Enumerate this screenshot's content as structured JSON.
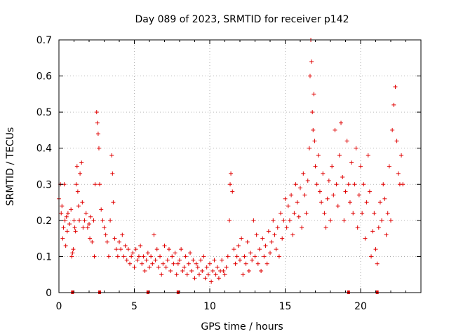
{
  "chart_data": {
    "type": "scatter",
    "title": "Day 089 of 2023, SRMTID for receiver p142",
    "xlabel": "GPS time / hours",
    "ylabel": "SRMTID / TECUs",
    "xlim": [
      0,
      24
    ],
    "ylim": [
      0,
      0.7
    ],
    "x_ticks": [
      0,
      5,
      10,
      15,
      20
    ],
    "x_tick_labels": [
      "0",
      "5",
      "10",
      "15",
      "20"
    ],
    "y_ticks": [
      0,
      0.1,
      0.2,
      0.3,
      0.4,
      0.5,
      0.6,
      0.7
    ],
    "y_tick_labels": [
      "0",
      "0.1",
      "0.2",
      "0.3",
      "0.4",
      "0.5",
      "0.6",
      "0.7"
    ],
    "grid": true,
    "marker": "plus",
    "color": "#e00000",
    "series": [
      {
        "name": "SRMTID",
        "points": [
          [
            0.0,
            0.26
          ],
          [
            0.1,
            0.3
          ],
          [
            0.15,
            0.22
          ],
          [
            0.2,
            0.24
          ],
          [
            0.25,
            0.15
          ],
          [
            0.3,
            0.18
          ],
          [
            0.35,
            0.3
          ],
          [
            0.4,
            0.2
          ],
          [
            0.45,
            0.13
          ],
          [
            0.5,
            0.21
          ],
          [
            0.55,
            0.17
          ],
          [
            0.6,
            0.22
          ],
          [
            0.7,
            0.19
          ],
          [
            0.8,
            0.23
          ],
          [
            0.85,
            0.1
          ],
          [
            0.9,
            0.11
          ],
          [
            0.95,
            0.12
          ],
          [
            1.0,
            0.2
          ],
          [
            1.05,
            0.18
          ],
          [
            1.1,
            0.17
          ],
          [
            1.15,
            0.3
          ],
          [
            1.2,
            0.35
          ],
          [
            1.25,
            0.28
          ],
          [
            1.3,
            0.24
          ],
          [
            1.35,
            0.2
          ],
          [
            1.4,
            0.33
          ],
          [
            1.5,
            0.36
          ],
          [
            1.55,
            0.25
          ],
          [
            1.6,
            0.18
          ],
          [
            1.7,
            0.2
          ],
          [
            1.8,
            0.22
          ],
          [
            1.9,
            0.18
          ],
          [
            2.0,
            0.19
          ],
          [
            2.05,
            0.15
          ],
          [
            2.1,
            0.21
          ],
          [
            2.2,
            0.14
          ],
          [
            2.3,
            0.2
          ],
          [
            2.35,
            0.1
          ],
          [
            2.4,
            0.3
          ],
          [
            2.5,
            0.5
          ],
          [
            2.55,
            0.47
          ],
          [
            2.6,
            0.44
          ],
          [
            2.65,
            0.4
          ],
          [
            2.7,
            0.3
          ],
          [
            2.8,
            0.23
          ],
          [
            2.9,
            0.2
          ],
          [
            3.0,
            0.18
          ],
          [
            3.1,
            0.16
          ],
          [
            3.2,
            0.14
          ],
          [
            3.3,
            0.1
          ],
          [
            3.4,
            0.2
          ],
          [
            3.5,
            0.38
          ],
          [
            3.55,
            0.33
          ],
          [
            3.6,
            0.25
          ],
          [
            3.7,
            0.15
          ],
          [
            3.8,
            0.12
          ],
          [
            3.9,
            0.1
          ],
          [
            4.0,
            0.14
          ],
          [
            4.1,
            0.12
          ],
          [
            4.2,
            0.16
          ],
          [
            4.3,
            0.1
          ],
          [
            4.4,
            0.13
          ],
          [
            4.5,
            0.09
          ],
          [
            4.6,
            0.12
          ],
          [
            4.7,
            0.08
          ],
          [
            4.8,
            0.1
          ],
          [
            4.9,
            0.11
          ],
          [
            5.0,
            0.07
          ],
          [
            5.1,
            0.12
          ],
          [
            5.2,
            0.09
          ],
          [
            5.3,
            0.1
          ],
          [
            5.4,
            0.13
          ],
          [
            5.5,
            0.08
          ],
          [
            5.6,
            0.1
          ],
          [
            5.7,
            0.06
          ],
          [
            5.8,
            0.09
          ],
          [
            5.9,
            0.11
          ],
          [
            6.0,
            0.07
          ],
          [
            6.1,
            0.1
          ],
          [
            6.2,
            0.08
          ],
          [
            6.3,
            0.16
          ],
          [
            6.4,
            0.09
          ],
          [
            6.5,
            0.12
          ],
          [
            6.6,
            0.07
          ],
          [
            6.7,
            0.1
          ],
          [
            6.8,
            0.05
          ],
          [
            6.9,
            0.08
          ],
          [
            7.0,
            0.13
          ],
          [
            7.1,
            0.07
          ],
          [
            7.2,
            0.09
          ],
          [
            7.3,
            0.12
          ],
          [
            7.4,
            0.06
          ],
          [
            7.5,
            0.1
          ],
          [
            7.6,
            0.08
          ],
          [
            7.7,
            0.11
          ],
          [
            7.8,
            0.05
          ],
          [
            7.9,
            0.08
          ],
          [
            8.0,
            0.09
          ],
          [
            8.1,
            0.12
          ],
          [
            8.2,
            0.06
          ],
          [
            8.3,
            0.07
          ],
          [
            8.4,
            0.1
          ],
          [
            8.5,
            0.05
          ],
          [
            8.6,
            0.08
          ],
          [
            8.7,
            0.11
          ],
          [
            8.8,
            0.06
          ],
          [
            8.9,
            0.09
          ],
          [
            9.0,
            0.04
          ],
          [
            9.1,
            0.08
          ],
          [
            9.2,
            0.07
          ],
          [
            9.3,
            0.05
          ],
          [
            9.4,
            0.09
          ],
          [
            9.5,
            0.06
          ],
          [
            9.6,
            0.1
          ],
          [
            9.7,
            0.04
          ],
          [
            9.8,
            0.07
          ],
          [
            9.9,
            0.05
          ],
          [
            10.0,
            0.08
          ],
          [
            10.1,
            0.03
          ],
          [
            10.2,
            0.06
          ],
          [
            10.3,
            0.09
          ],
          [
            10.4,
            0.05
          ],
          [
            10.5,
            0.07
          ],
          [
            10.6,
            0.04
          ],
          [
            10.7,
            0.06
          ],
          [
            10.8,
            0.09
          ],
          [
            10.9,
            0.06
          ],
          [
            11.0,
            0.05
          ],
          [
            11.1,
            0.07
          ],
          [
            11.2,
            0.1
          ],
          [
            11.3,
            0.2
          ],
          [
            11.35,
            0.3
          ],
          [
            11.4,
            0.33
          ],
          [
            11.5,
            0.28
          ],
          [
            11.6,
            0.12
          ],
          [
            11.7,
            0.08
          ],
          [
            11.8,
            0.1
          ],
          [
            11.9,
            0.13
          ],
          [
            12.0,
            0.09
          ],
          [
            12.1,
            0.15
          ],
          [
            12.2,
            0.05
          ],
          [
            12.3,
            0.1
          ],
          [
            12.4,
            0.08
          ],
          [
            12.5,
            0.14
          ],
          [
            12.6,
            0.06
          ],
          [
            12.7,
            0.11
          ],
          [
            12.8,
            0.09
          ],
          [
            12.9,
            0.2
          ],
          [
            13.0,
            0.1
          ],
          [
            13.1,
            0.16
          ],
          [
            13.2,
            0.08
          ],
          [
            13.3,
            0.12
          ],
          [
            13.4,
            0.06
          ],
          [
            13.5,
            0.15
          ],
          [
            13.6,
            0.1
          ],
          [
            13.7,
            0.13
          ],
          [
            13.8,
            0.08
          ],
          [
            13.9,
            0.17
          ],
          [
            14.0,
            0.11
          ],
          [
            14.1,
            0.14
          ],
          [
            14.2,
            0.2
          ],
          [
            14.3,
            0.16
          ],
          [
            14.4,
            0.12
          ],
          [
            14.5,
            0.18
          ],
          [
            14.6,
            0.1
          ],
          [
            14.7,
            0.22
          ],
          [
            14.8,
            0.15
          ],
          [
            14.9,
            0.2
          ],
          [
            15.0,
            0.26
          ],
          [
            15.1,
            0.18
          ],
          [
            15.2,
            0.24
          ],
          [
            15.3,
            0.2
          ],
          [
            15.4,
            0.27
          ],
          [
            15.5,
            0.16
          ],
          [
            15.6,
            0.22
          ],
          [
            15.7,
            0.3
          ],
          [
            15.8,
            0.25
          ],
          [
            15.9,
            0.21
          ],
          [
            16.0,
            0.29
          ],
          [
            16.1,
            0.18
          ],
          [
            16.2,
            0.33
          ],
          [
            16.3,
            0.27
          ],
          [
            16.4,
            0.22
          ],
          [
            16.5,
            0.31
          ],
          [
            16.6,
            0.4
          ],
          [
            16.65,
            0.6
          ],
          [
            16.7,
            0.7
          ],
          [
            16.75,
            0.64
          ],
          [
            16.8,
            0.5
          ],
          [
            16.85,
            0.45
          ],
          [
            16.9,
            0.55
          ],
          [
            16.95,
            0.42
          ],
          [
            17.0,
            0.35
          ],
          [
            17.1,
            0.3
          ],
          [
            17.2,
            0.38
          ],
          [
            17.3,
            0.28
          ],
          [
            17.4,
            0.25
          ],
          [
            17.5,
            0.33
          ],
          [
            17.6,
            0.22
          ],
          [
            17.7,
            0.18
          ],
          [
            17.8,
            0.26
          ],
          [
            17.9,
            0.31
          ],
          [
            18.0,
            0.2
          ],
          [
            18.1,
            0.35
          ],
          [
            18.2,
            0.27
          ],
          [
            18.3,
            0.45
          ],
          [
            18.4,
            0.3
          ],
          [
            18.5,
            0.24
          ],
          [
            18.6,
            0.38
          ],
          [
            18.7,
            0.47
          ],
          [
            18.8,
            0.32
          ],
          [
            18.9,
            0.2
          ],
          [
            19.0,
            0.28
          ],
          [
            19.1,
            0.42
          ],
          [
            19.2,
            0.3
          ],
          [
            19.3,
            0.25
          ],
          [
            19.4,
            0.36
          ],
          [
            19.5,
            0.22
          ],
          [
            19.6,
            0.3
          ],
          [
            19.7,
            0.4
          ],
          [
            19.8,
            0.18
          ],
          [
            19.9,
            0.27
          ],
          [
            20.0,
            0.35
          ],
          [
            20.1,
            0.22
          ],
          [
            20.2,
            0.3
          ],
          [
            20.3,
            0.15
          ],
          [
            20.4,
            0.25
          ],
          [
            20.5,
            0.38
          ],
          [
            20.6,
            0.28
          ],
          [
            20.7,
            0.1
          ],
          [
            20.8,
            0.17
          ],
          [
            20.9,
            0.22
          ],
          [
            21.0,
            0.12
          ],
          [
            21.1,
            0.08
          ],
          [
            21.2,
            0.18
          ],
          [
            21.3,
            0.25
          ],
          [
            21.4,
            0.2
          ],
          [
            21.5,
            0.3
          ],
          [
            21.6,
            0.26
          ],
          [
            21.7,
            0.16
          ],
          [
            21.8,
            0.22
          ],
          [
            21.9,
            0.35
          ],
          [
            22.0,
            0.2
          ],
          [
            22.1,
            0.45
          ],
          [
            22.2,
            0.52
          ],
          [
            22.3,
            0.57
          ],
          [
            22.4,
            0.42
          ],
          [
            22.5,
            0.33
          ],
          [
            22.6,
            0.3
          ],
          [
            22.7,
            0.38
          ],
          [
            22.8,
            0.3
          ]
        ]
      }
    ],
    "x_axis_marks": [
      0.9,
      2.7,
      5.9,
      7.9,
      19.2,
      21.1
    ]
  }
}
